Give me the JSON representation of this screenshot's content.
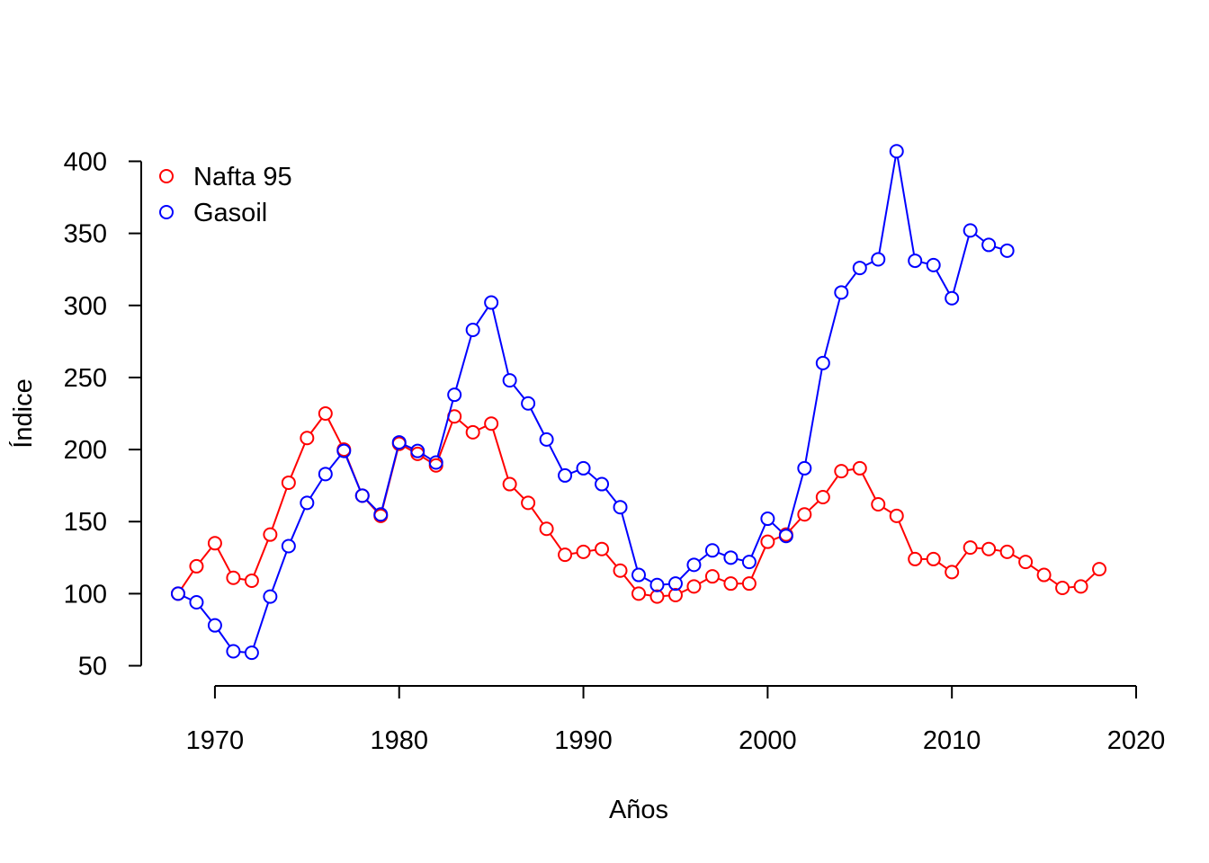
{
  "chart_data": {
    "type": "line",
    "title": "",
    "xlabel": "Años",
    "ylabel": "Índice",
    "xlim": [
      1966,
      2020
    ],
    "ylim": [
      36,
      414
    ],
    "x_ticks": [
      1970,
      1980,
      1990,
      2000,
      2010,
      2020
    ],
    "y_ticks": [
      50,
      100,
      150,
      200,
      250,
      300,
      350,
      400
    ],
    "grid": false,
    "legend_position": "top-left",
    "series": [
      {
        "name": "Nafta 95",
        "color": "#ff0000",
        "x": [
          1968,
          1969,
          1970,
          1971,
          1972,
          1973,
          1974,
          1975,
          1976,
          1977,
          1978,
          1979,
          1980,
          1981,
          1982,
          1983,
          1984,
          1985,
          1986,
          1987,
          1988,
          1989,
          1990,
          1991,
          1992,
          1993,
          1994,
          1995,
          1996,
          1997,
          1998,
          1999,
          2000,
          2001,
          2002,
          2003,
          2004,
          2005,
          2006,
          2007,
          2008,
          2009,
          2010,
          2011,
          2012,
          2013,
          2014,
          2015,
          2016,
          2017,
          2018
        ],
        "y": [
          100,
          119,
          135,
          111,
          109,
          141,
          177,
          208,
          225,
          200,
          168,
          154,
          204,
          197,
          189,
          223,
          212,
          218,
          176,
          163,
          145,
          127,
          129,
          131,
          116,
          100,
          98,
          99,
          105,
          112,
          107,
          107,
          136,
          141,
          155,
          167,
          185,
          187,
          162,
          154,
          124,
          124,
          115,
          132,
          131,
          129,
          122,
          113,
          104,
          105,
          117
        ]
      },
      {
        "name": "Gasoil",
        "color": "#0000ff",
        "x": [
          1968,
          1969,
          1970,
          1971,
          1972,
          1973,
          1974,
          1975,
          1976,
          1977,
          1978,
          1979,
          1980,
          1981,
          1982,
          1983,
          1984,
          1985,
          1986,
          1987,
          1988,
          1989,
          1990,
          1991,
          1992,
          1993,
          1994,
          1995,
          1996,
          1997,
          1998,
          1999,
          2000,
          2001,
          2002,
          2003,
          2004,
          2005,
          2006,
          2007,
          2008,
          2009,
          2010,
          2011,
          2012,
          2013
        ],
        "y": [
          100,
          94,
          78,
          60,
          59,
          98,
          133,
          163,
          183,
          199,
          168,
          155,
          205,
          199,
          191,
          238,
          283,
          302,
          248,
          232,
          207,
          182,
          187,
          176,
          160,
          113,
          106,
          107,
          120,
          130,
          125,
          122,
          152,
          140,
          187,
          260,
          309,
          326,
          332,
          407,
          331,
          328,
          305,
          352,
          342,
          338
        ]
      }
    ]
  }
}
